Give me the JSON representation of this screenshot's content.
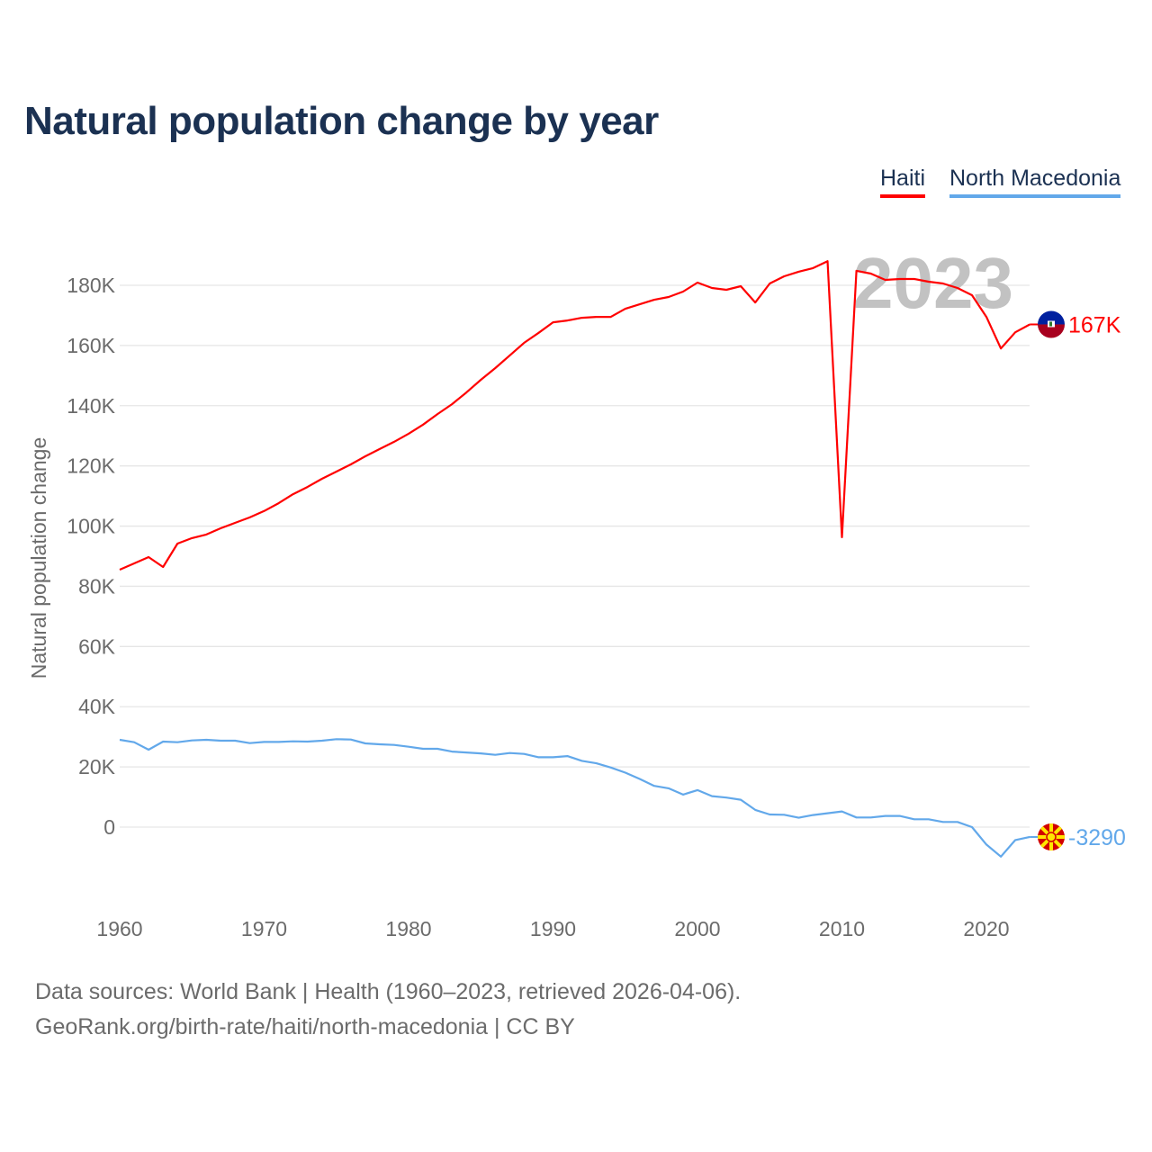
{
  "title": "Natural population change by year",
  "footer": {
    "line1": "Data sources: World Bank | Health (1960–2023, retrieved 2026-04-06).",
    "line2": "GeoRank.org/birth-rate/haiti/north-macedonia | CC BY"
  },
  "chart_data": {
    "type": "line",
    "title": "Natural population change by year",
    "xlabel": "",
    "ylabel": "Natural population change",
    "year_watermark": "2023",
    "xlim": [
      1960,
      2023
    ],
    "ylim": [
      -20000,
      195000
    ],
    "x_ticks": [
      1960,
      1970,
      1980,
      1990,
      2000,
      2010,
      2020
    ],
    "x_tick_labels": [
      "1960",
      "1970",
      "1980",
      "1990",
      "2000",
      "2010",
      "2020"
    ],
    "y_ticks": [
      0,
      20000,
      40000,
      60000,
      80000,
      100000,
      120000,
      140000,
      160000,
      180000
    ],
    "y_tick_labels": [
      "0",
      "20K",
      "40K",
      "60K",
      "80K",
      "100K",
      "120K",
      "140K",
      "160K",
      "180K"
    ],
    "grid": true,
    "legend_position": "top-right",
    "x": [
      1960,
      1961,
      1962,
      1963,
      1964,
      1965,
      1966,
      1967,
      1968,
      1969,
      1970,
      1971,
      1972,
      1973,
      1974,
      1975,
      1976,
      1977,
      1978,
      1979,
      1980,
      1981,
      1982,
      1983,
      1984,
      1985,
      1986,
      1987,
      1988,
      1989,
      1990,
      1991,
      1992,
      1993,
      1994,
      1995,
      1996,
      1997,
      1998,
      1999,
      2000,
      2001,
      2002,
      2003,
      2004,
      2005,
      2006,
      2007,
      2008,
      2009,
      2010,
      2011,
      2012,
      2013,
      2014,
      2015,
      2016,
      2017,
      2018,
      2019,
      2020,
      2021,
      2022,
      2023
    ],
    "series": [
      {
        "name": "Haiti",
        "color": "#ff0000",
        "end_label": "167K",
        "flag": "haiti-flag",
        "values": [
          85500,
          87600,
          89700,
          86400,
          94200,
          96000,
          97200,
          99300,
          101100,
          102900,
          105000,
          107600,
          110600,
          113000,
          115700,
          118100,
          120500,
          123200,
          125600,
          128000,
          130700,
          133700,
          137200,
          140500,
          144400,
          148600,
          152500,
          156700,
          160900,
          164200,
          167700,
          168300,
          169200,
          169500,
          169500,
          172200,
          173700,
          175200,
          176100,
          177900,
          180900,
          179100,
          178500,
          179700,
          174300,
          180600,
          183000,
          184500,
          185700,
          188000,
          96300,
          184800,
          183900,
          181800,
          182100,
          182100,
          181200,
          180600,
          179100,
          176700,
          169500,
          159000,
          164400,
          167000
        ]
      },
      {
        "name": "North Macedonia",
        "color": "#62a8ea",
        "end_label": "-3290",
        "flag": "north-macedonia-flag",
        "values": [
          29000,
          28200,
          25700,
          28400,
          28200,
          28800,
          29000,
          28700,
          28700,
          27900,
          28300,
          28300,
          28500,
          28400,
          28700,
          29200,
          29100,
          27800,
          27500,
          27300,
          26700,
          26000,
          26000,
          25100,
          24800,
          24500,
          24000,
          24600,
          24300,
          23200,
          23200,
          23600,
          22000,
          21200,
          19800,
          18100,
          16000,
          13700,
          12900,
          10800,
          12300,
          10300,
          9800,
          9100,
          5700,
          4200,
          4100,
          3100,
          4000,
          4600,
          5200,
          3200,
          3200,
          3700,
          3700,
          2600,
          2600,
          1700,
          1700,
          0,
          -5800,
          -9800,
          -4300,
          -3290
        ]
      }
    ]
  }
}
